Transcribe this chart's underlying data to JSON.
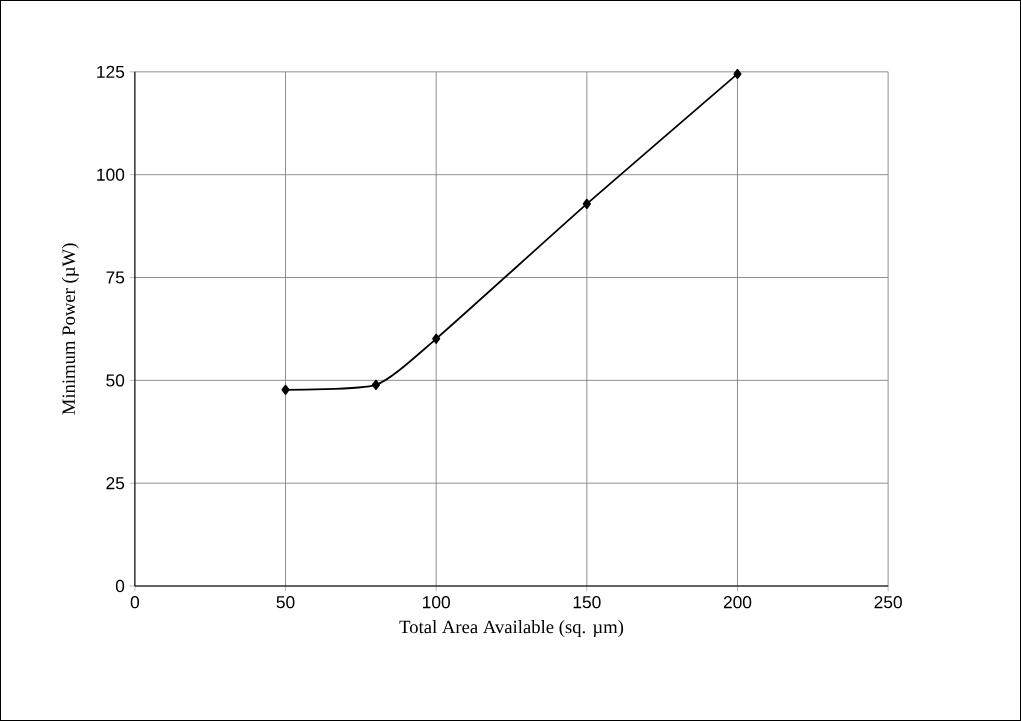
{
  "chart_data": {
    "type": "line",
    "xlabel": "Total Area Available (sq. µm)",
    "ylabel": "Minimum Power (µW)",
    "x": [
      50,
      80,
      100,
      150,
      200
    ],
    "values": [
      47.7,
      48.9,
      60.1,
      92.9,
      124.5
    ],
    "color": "#000000",
    "marker": "diamond",
    "line_style": "solid",
    "grid": true,
    "xlim": [
      0,
      250
    ],
    "xticks": [
      0,
      50,
      100,
      150,
      200,
      250
    ],
    "ylim": [
      0,
      125
    ],
    "yticks": [
      0,
      25,
      50,
      75,
      100,
      125
    ]
  }
}
